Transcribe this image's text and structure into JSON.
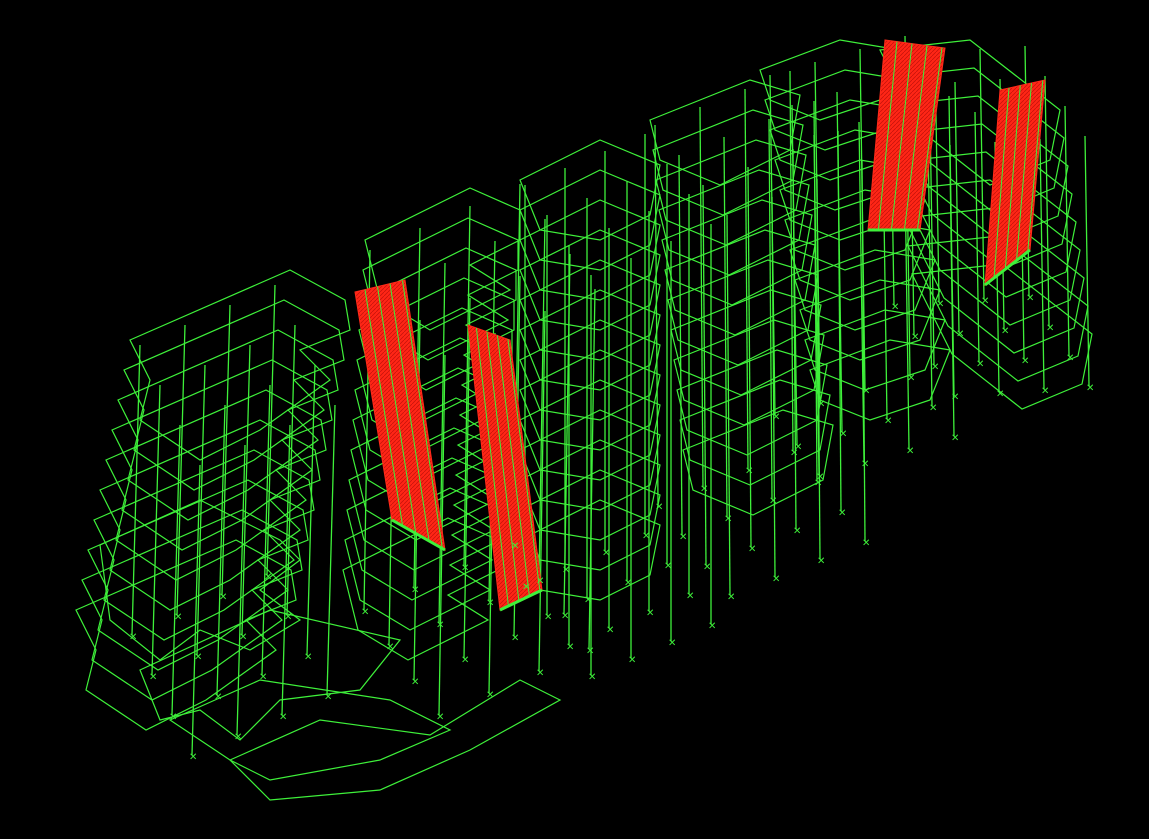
{
  "viewer": {
    "view": "3D isometric wireframe",
    "background_color": "#000000",
    "frame_color": "#3ef03a",
    "wall_color": "#ff2a1a",
    "support_icon": "pin-support-icon"
  }
}
